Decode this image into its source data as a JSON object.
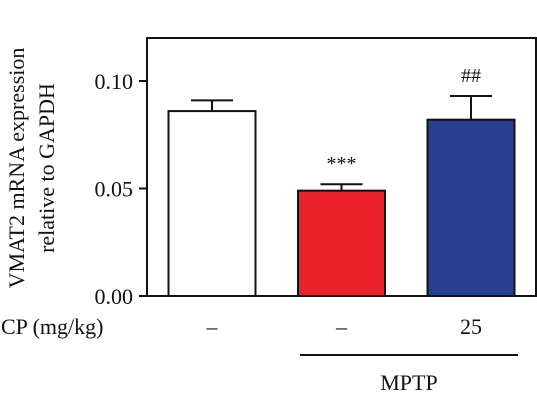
{
  "chart_data": {
    "type": "bar",
    "ylabel_line1": "VMAT2 mRNA expression",
    "ylabel_line2": "relative to GAPDH",
    "ylim": [
      0,
      0.12
    ],
    "yticks": [
      {
        "value": 0.0,
        "label": "0.00"
      },
      {
        "value": 0.05,
        "label": "0.05"
      },
      {
        "value": 0.1,
        "label": "0.10"
      }
    ],
    "bars": [
      {
        "value": 0.086,
        "error": 0.005,
        "color": "#ffffff",
        "annotation": ""
      },
      {
        "value": 0.049,
        "error": 0.003,
        "color": "#e8212a",
        "annotation": "***"
      },
      {
        "value": 0.082,
        "error": 0.011,
        "color": "#2c3e92",
        "annotation": "##"
      }
    ],
    "x_row_label": "CP (mg/kg)",
    "x_row_values": [
      "–",
      "–",
      "25"
    ],
    "group_label": "MPTP",
    "grid": false,
    "legend": "none"
  }
}
